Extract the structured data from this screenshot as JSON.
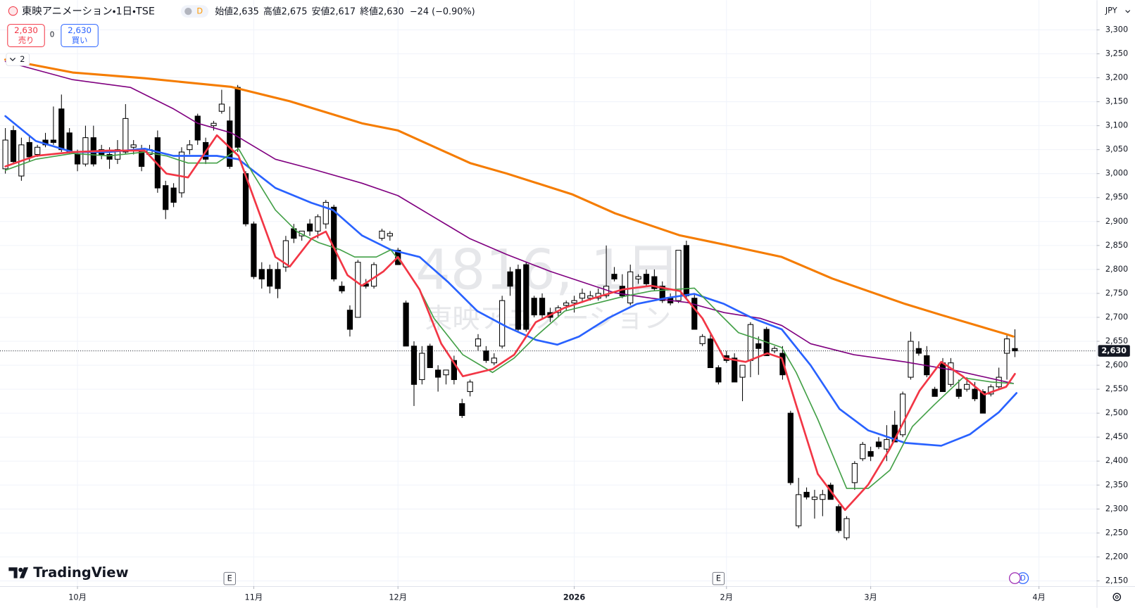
{
  "header": {
    "title": "東映アニメーション・1日・TSE",
    "badge": "D",
    "ohlc": [
      {
        "label": "始値",
        "value": "2,635"
      },
      {
        "label": "高値",
        "value": "2,675"
      },
      {
        "label": "安値",
        "value": "2,617"
      },
      {
        "label": "終値",
        "value": "2,630"
      }
    ],
    "change": "−24 (−0.90%)"
  },
  "trade": {
    "sell_price": "2,630",
    "sell": "売り",
    "spread": "0",
    "buy_price": "2,630",
    "buy": "買い"
  },
  "indicators_toggle": "2",
  "currency": "JPY",
  "watermark": {
    "symbol": "4816, 1日",
    "name": "東映アニメーション"
  },
  "branding": "TradingView",
  "chart_data": {
    "type": "candlestick",
    "candles": {
      "up_color": "#ffffff",
      "down_color": "#000000",
      "x": [
        0,
        1,
        2,
        3,
        4,
        5,
        6,
        7,
        8,
        9,
        10,
        11,
        12,
        13,
        14,
        15,
        16,
        17,
        18,
        19,
        20,
        21,
        22,
        23,
        24,
        25,
        26,
        27,
        28,
        29,
        30,
        31,
        32,
        33,
        34,
        35,
        36,
        37,
        38,
        39,
        40,
        41,
        42,
        43,
        44,
        45,
        46,
        47,
        48,
        49,
        50,
        51,
        52,
        53,
        54,
        55,
        56,
        57,
        58,
        59,
        60,
        61,
        62,
        63,
        64,
        65,
        66,
        67,
        68,
        69,
        70,
        71,
        72,
        73,
        74,
        75,
        76,
        77,
        78,
        79,
        80,
        81,
        82,
        83,
        84,
        85,
        86,
        87,
        88,
        89,
        90,
        91,
        92,
        93,
        94,
        95,
        96,
        97,
        98,
        99,
        100,
        101,
        102,
        103,
        104,
        105,
        106,
        107,
        108,
        109,
        110,
        111,
        112,
        113,
        114,
        115,
        116,
        117,
        118,
        119,
        120,
        121,
        122,
        123,
        124,
        125,
        126
      ],
      "open": [
        3010,
        3090,
        2995,
        3065,
        3040,
        3070,
        3070,
        3135,
        3085,
        3040,
        3020,
        3075,
        3050,
        3040,
        3030,
        3045,
        3055,
        3050,
        3040,
        3075,
        2975,
        2970,
        2960,
        3050,
        3120,
        3065,
        3100,
        3130,
        3110,
        3180,
        3000,
        2895,
        2800,
        2800,
        2800,
        2805,
        2885,
        2870,
        2895,
        2880,
        2895,
        2930,
        2765,
        2715,
        2700,
        2770,
        2765,
        2865,
        2870,
        2840,
        2730,
        2640,
        2570,
        2640,
        2590,
        2580,
        2610,
        2520,
        2545,
        2640,
        2630,
        2605,
        2640,
        2795,
        2800,
        2810,
        2740,
        2740,
        2710,
        2710,
        2725,
        2730,
        2740,
        2740,
        2740,
        2745,
        2790,
        2765,
        2730,
        2780,
        2790,
        2785,
        2765,
        2740,
        2735,
        2850,
        2740,
        2645,
        2655,
        2595,
        2620,
        2615,
        2575,
        2610,
        2645,
        2675,
        2630,
        2625,
        2500,
        2265,
        2335,
        2320,
        2320,
        2350,
        2305,
        2240,
        2355,
        2405,
        2420,
        2440,
        2425,
        2475,
        2455,
        2575,
        2635,
        2620,
        2550,
        2605,
        2560,
        2550,
        2550,
        2550,
        2545,
        2540,
        2555,
        2625,
        2635
      ],
      "high": [
        3095,
        3100,
        3075,
        3080,
        3060,
        3085,
        3140,
        3165,
        3095,
        3050,
        3100,
        3100,
        3060,
        3055,
        3070,
        3145,
        3070,
        3060,
        3060,
        3090,
        2985,
        2980,
        3055,
        3070,
        3125,
        3075,
        3110,
        3175,
        3140,
        3185,
        3005,
        2900,
        2815,
        2810,
        2815,
        2870,
        2895,
        2880,
        2905,
        2915,
        2945,
        2935,
        2775,
        2725,
        2820,
        2780,
        2815,
        2885,
        2880,
        2845,
        2735,
        2650,
        2640,
        2645,
        2600,
        2590,
        2620,
        2530,
        2570,
        2665,
        2640,
        2625,
        2745,
        2805,
        2810,
        2815,
        2745,
        2750,
        2720,
        2725,
        2735,
        2745,
        2760,
        2755,
        2760,
        2850,
        2805,
        2790,
        2810,
        2790,
        2800,
        2800,
        2775,
        2750,
        2840,
        2860,
        2750,
        2665,
        2665,
        2600,
        2630,
        2625,
        2600,
        2690,
        2660,
        2680,
        2640,
        2640,
        2505,
        2365,
        2345,
        2340,
        2340,
        2355,
        2310,
        2285,
        2400,
        2440,
        2430,
        2450,
        2475,
        2505,
        2545,
        2670,
        2650,
        2640,
        2555,
        2615,
        2615,
        2570,
        2575,
        2565,
        2550,
        2560,
        2595,
        2665,
        2675
      ],
      "low": [
        3000,
        3020,
        2985,
        3025,
        3035,
        3055,
        3060,
        3045,
        3040,
        3005,
        3015,
        3015,
        3030,
        3010,
        3020,
        3040,
        3040,
        3005,
        3035,
        2960,
        2905,
        2930,
        2950,
        3040,
        3060,
        3020,
        3090,
        3125,
        3010,
        3045,
        2890,
        2780,
        2760,
        2750,
        2740,
        2795,
        2855,
        2860,
        2870,
        2865,
        2885,
        2775,
        2750,
        2660,
        2700,
        2760,
        2760,
        2860,
        2860,
        2810,
        2640,
        2515,
        2560,
        2595,
        2545,
        2560,
        2560,
        2490,
        2535,
        2630,
        2605,
        2600,
        2635,
        2745,
        2670,
        2670,
        2700,
        2695,
        2690,
        2700,
        2715,
        2710,
        2730,
        2735,
        2735,
        2740,
        2775,
        2740,
        2725,
        2770,
        2765,
        2755,
        2730,
        2725,
        2730,
        2740,
        2675,
        2640,
        2595,
        2560,
        2605,
        2565,
        2525,
        2575,
        2580,
        2620,
        2625,
        2570,
        2350,
        2260,
        2320,
        2280,
        2285,
        2320,
        2250,
        2235,
        2340,
        2400,
        2400,
        2425,
        2400,
        2440,
        2450,
        2570,
        2620,
        2575,
        2535,
        2545,
        2555,
        2530,
        2545,
        2525,
        2500,
        2535,
        2550,
        2570,
        2617
      ],
      "close": [
        3070,
        3025,
        3060,
        3035,
        3055,
        3060,
        3065,
        3050,
        3045,
        3020,
        3075,
        3020,
        3040,
        3030,
        3050,
        3115,
        3060,
        3015,
        3050,
        2970,
        2925,
        2940,
        3045,
        3060,
        3070,
        3030,
        3105,
        3145,
        3015,
        3055,
        2895,
        2785,
        2780,
        2765,
        2760,
        2860,
        2865,
        2880,
        2880,
        2910,
        2940,
        2780,
        2755,
        2675,
        2815,
        2765,
        2810,
        2880,
        2875,
        2810,
        2640,
        2560,
        2625,
        2595,
        2575,
        2590,
        2570,
        2495,
        2565,
        2655,
        2610,
        2615,
        2735,
        2765,
        2675,
        2675,
        2705,
        2705,
        2700,
        2720,
        2730,
        2735,
        2750,
        2745,
        2750,
        2765,
        2780,
        2745,
        2795,
        2785,
        2770,
        2760,
        2735,
        2730,
        2840,
        2745,
        2675,
        2660,
        2595,
        2565,
        2610,
        2565,
        2600,
        2685,
        2635,
        2620,
        2635,
        2580,
        2355,
        2330,
        2325,
        2325,
        2330,
        2320,
        2255,
        2280,
        2395,
        2435,
        2410,
        2430,
        2445,
        2440,
        2540,
        2650,
        2625,
        2580,
        2535,
        2545,
        2605,
        2535,
        2560,
        2530,
        2500,
        2555,
        2575,
        2655,
        2630
      ]
    },
    "series": [
      {
        "color": "#f57c00",
        "width": 3,
        "x": [
          0,
          8.4,
          17.4,
          28.2,
          35.5,
          44.5,
          49,
          58,
          62.6,
          70.7,
          76.1,
          84.2,
          89.7,
          96.9,
          103.2,
          112.3,
          116.8,
          124.9,
          125.8
        ],
        "values": [
          3238,
          3211,
          3199,
          3181,
          3151,
          3105,
          3090,
          3022,
          3000,
          2957,
          2917,
          2871,
          2852,
          2826,
          2781,
          2728,
          2705,
          2665,
          2660
        ]
      },
      {
        "color": "#800080",
        "width": 1.6,
        "x": [
          0,
          8.4,
          15.6,
          21,
          24,
          28.2,
          33.7,
          38.2,
          44.5,
          49,
          53.5,
          58,
          62.6,
          68,
          76.1,
          80.6,
          85.1,
          89.7,
          94.2,
          96.9,
          100.5,
          105.9,
          112.3,
          118.6,
          125.8
        ],
        "values": [
          3234,
          3196,
          3180,
          3135,
          3105,
          3085,
          3030,
          3010,
          2980,
          2954,
          2909,
          2864,
          2831,
          2796,
          2751,
          2740,
          2731,
          2710,
          2698,
          2683,
          2645,
          2622,
          2607,
          2589,
          2562
        ]
      },
      {
        "color": "#2962ff",
        "width": 2.6,
        "x": [
          0,
          3.8,
          8.4,
          12.9,
          17.4,
          21,
          22.8,
          26.4,
          29.1,
          33.7,
          38.2,
          40.9,
          44.5,
          48.1,
          51.7,
          55.3,
          58.9,
          62.6,
          66.2,
          68.9,
          71.6,
          75.2,
          78.8,
          82.4,
          86,
          89.7,
          93.3,
          96.9,
          100.5,
          104.1,
          107.7,
          112.3,
          116.8,
          120.4,
          124,
          126.2
        ],
        "values": [
          3120,
          3068,
          3045,
          3045,
          3052,
          3037,
          3037,
          3037,
          3030,
          2970,
          2939,
          2924,
          2871,
          2841,
          2826,
          2773,
          2713,
          2680,
          2653,
          2643,
          2660,
          2698,
          2728,
          2740,
          2749,
          2728,
          2698,
          2675,
          2600,
          2509,
          2464,
          2438,
          2432,
          2456,
          2502,
          2542
        ]
      },
      {
        "color": "#43a047",
        "width": 1.6,
        "x": [
          0,
          3.8,
          8.4,
          12.9,
          17.4,
          20.1,
          22.8,
          26.4,
          29.1,
          30.9,
          33.7,
          36.4,
          39.1,
          41.8,
          43.6,
          46.3,
          48.1,
          49.9,
          51.7,
          53.5,
          57.1,
          60.8,
          63.5,
          66.2,
          69.8,
          73.4,
          77,
          80.6,
          83.3,
          86,
          88.8,
          91.5,
          94.2,
          96.9,
          98.7,
          101.4,
          105,
          107.7,
          110.4,
          113.2,
          115.9,
          119.5,
          123.1,
          125.8
        ],
        "values": [
          3007,
          3030,
          3042,
          3037,
          3045,
          3037,
          3022,
          3022,
          3052,
          3000,
          2924,
          2879,
          2856,
          2841,
          2826,
          2826,
          2841,
          2803,
          2758,
          2698,
          2622,
          2585,
          2615,
          2660,
          2713,
          2728,
          2743,
          2755,
          2758,
          2761,
          2713,
          2668,
          2653,
          2637,
          2585,
          2487,
          2343,
          2343,
          2381,
          2472,
          2517,
          2574,
          2565,
          2562
        ]
      },
      {
        "color": "#f23645",
        "width": 2.6,
        "x": [
          0,
          3.8,
          8.4,
          12.9,
          17.4,
          20.1,
          22.8,
          26.4,
          29.1,
          30.9,
          33.7,
          35.5,
          38.2,
          40,
          42.7,
          44.5,
          47.2,
          49,
          51.7,
          54.4,
          57.1,
          60.8,
          63.5,
          66.2,
          69.8,
          73.4,
          77,
          80.6,
          84.2,
          87,
          89.7,
          92.4,
          95.1,
          96.9,
          98.7,
          101.4,
          104.8,
          107.7,
          110.4,
          114.1,
          116.8,
          119.5,
          122.2,
          124.9,
          126
        ],
        "values": [
          3015,
          3037,
          3045,
          3048,
          3048,
          3000,
          2992,
          3080,
          3037,
          2954,
          2826,
          2806,
          2864,
          2879,
          2788,
          2766,
          2796,
          2826,
          2758,
          2645,
          2577,
          2592,
          2622,
          2690,
          2720,
          2740,
          2758,
          2766,
          2755,
          2698,
          2615,
          2607,
          2625,
          2615,
          2517,
          2373,
          2298,
          2351,
          2426,
          2547,
          2607,
          2577,
          2539,
          2555,
          2582
        ]
      }
    ],
    "xlim": [
      -0.67,
      136.2
    ],
    "ylim": [
      2139,
      3362
    ],
    "xticks": [
      {
        "value": 9,
        "label": "10月"
      },
      {
        "value": 31,
        "label": "11月"
      },
      {
        "value": 49,
        "label": "12月"
      },
      {
        "value": 71,
        "label": "2026"
      },
      {
        "value": 90,
        "label": "2月"
      },
      {
        "value": 108,
        "label": "3月"
      },
      {
        "value": 129,
        "label": "4月"
      }
    ],
    "yticks": [
      {
        "value": 2150,
        "label": "2,150"
      },
      {
        "value": 2200,
        "label": "2,200"
      },
      {
        "value": 2250,
        "label": "2,250"
      },
      {
        "value": 2300,
        "label": "2,300"
      },
      {
        "value": 2350,
        "label": "2,350"
      },
      {
        "value": 2400,
        "label": "2,400"
      },
      {
        "value": 2450,
        "label": "2,450"
      },
      {
        "value": 2500,
        "label": "2,500"
      },
      {
        "value": 2550,
        "label": "2,550"
      },
      {
        "value": 2600,
        "label": "2,600"
      },
      {
        "value": 2650,
        "label": "2,650"
      },
      {
        "value": 2700,
        "label": "2,700"
      },
      {
        "value": 2750,
        "label": "2,750"
      },
      {
        "value": 2800,
        "label": "2,800"
      },
      {
        "value": 2850,
        "label": "2,850"
      },
      {
        "value": 2900,
        "label": "2,900"
      },
      {
        "value": 2950,
        "label": "2,950"
      },
      {
        "value": 3000,
        "label": "3,000"
      },
      {
        "value": 3050,
        "label": "3,050"
      },
      {
        "value": 3100,
        "label": "3,100"
      },
      {
        "value": 3150,
        "label": "3,150"
      },
      {
        "value": 3200,
        "label": "3,200"
      },
      {
        "value": 3250,
        "label": "3,250"
      },
      {
        "value": 3300,
        "label": "3,300"
      }
    ],
    "grid": true,
    "grid_color": "#f0f3fa",
    "price_line": {
      "value": 2630,
      "label": "2,630"
    },
    "events": [
      {
        "x": 28,
        "label": "E"
      },
      {
        "x": 89,
        "label": "E"
      },
      {
        "x": 127,
        "label": "D"
      }
    ]
  }
}
